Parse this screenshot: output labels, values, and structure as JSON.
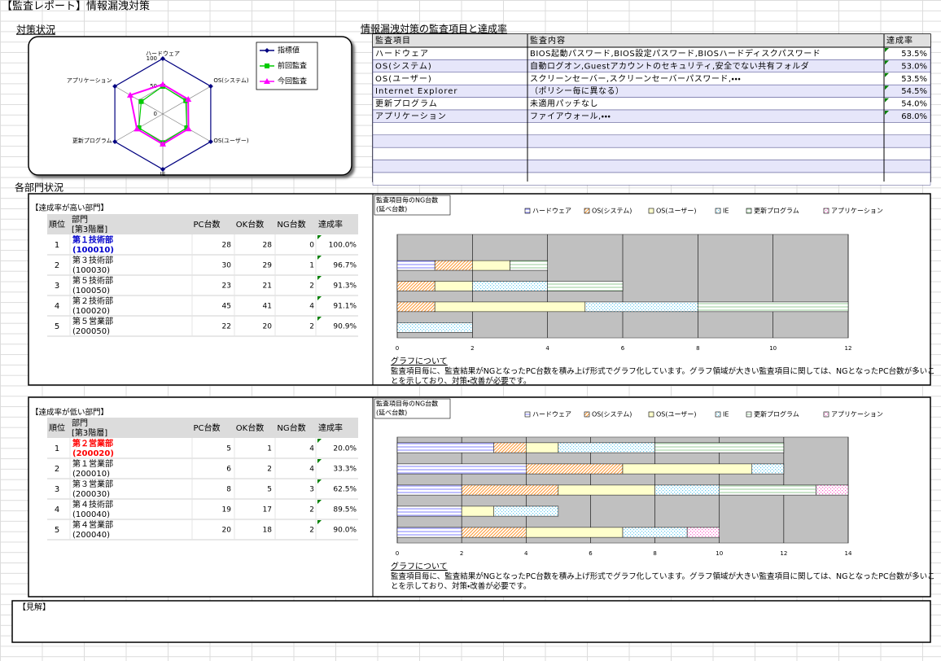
{
  "header": {
    "title": "【監査レポート】情報漏洩対策"
  },
  "sections": {
    "measures": "対策状況",
    "departments": "各部門状況"
  },
  "audit_table": {
    "title": "情報漏洩対策の監査項目と達成率",
    "columns": [
      "監査項目",
      "監査内容",
      "達成率"
    ],
    "rows": [
      [
        "ハードウェア",
        "BIOS起動パスワード,BIOS設定パスワード,BIOSハードディスクパスワード",
        "53.5%"
      ],
      [
        "OS(システム)",
        "自動ログオン,Guestアカウントのセキュリティ,安全でない共有フォルダ",
        "53.0%"
      ],
      [
        "OS(ユーザー)",
        "スクリーンセーバー,スクリーンセーバーパスワード,・・・",
        "53.5%"
      ],
      [
        "Internet Explorer",
        "（ポリシー毎に異なる）",
        "54.5%"
      ],
      [
        "更新プログラム",
        "未適用パッチなし",
        "54.0%"
      ],
      [
        "アプリケーション",
        "ファイアウォール,・・・",
        "68.0%"
      ]
    ]
  },
  "high_departments": {
    "title": "【達成率が高い部門】",
    "columns": [
      "順位",
      "部門",
      "PC台数",
      "OK台数",
      "NG台数",
      "達成率"
    ],
    "level": "[第3階層]",
    "highlight_color": "#0000cc",
    "rows": [
      [
        "1",
        "第１技術部",
        "(100010)",
        "28",
        "28",
        "0",
        "100.0%"
      ],
      [
        "2",
        "第３技術部",
        "(100030)",
        "30",
        "29",
        "1",
        "96.7%"
      ],
      [
        "3",
        "第５技術部",
        "(100050)",
        "23",
        "21",
        "2",
        "91.3%"
      ],
      [
        "4",
        "第２技術部",
        "(100020)",
        "45",
        "41",
        "4",
        "91.1%"
      ],
      [
        "5",
        "第５営業部",
        "(200050)",
        "22",
        "20",
        "2",
        "90.9%"
      ]
    ]
  },
  "low_departments": {
    "title": "【達成率が低い部門】",
    "columns": [
      "順位",
      "部門",
      "PC台数",
      "OK台数",
      "NG台数",
      "達成率"
    ],
    "level": "[第3階層]",
    "highlight_color": "#ff0000",
    "rows": [
      [
        "1",
        "第２営業部",
        "(200020)",
        "5",
        "1",
        "4",
        "20.0%"
      ],
      [
        "2",
        "第１営業部",
        "(200010)",
        "6",
        "2",
        "4",
        "33.3%"
      ],
      [
        "3",
        "第３営業部",
        "(200030)",
        "8",
        "5",
        "3",
        "62.5%"
      ],
      [
        "4",
        "第４技術部",
        "(100040)",
        "19",
        "17",
        "2",
        "89.5%"
      ],
      [
        "5",
        "第４営業部",
        "(200040)",
        "20",
        "18",
        "2",
        "90.0%"
      ]
    ]
  },
  "chart_data": [
    {
      "type": "radar",
      "categories": [
        "ハードウェア",
        "OS(システム)",
        "OS(ユーザー)",
        "IE",
        "更新プログラム",
        "アプリケーション"
      ],
      "rlim": [
        0,
        100
      ],
      "rticks": [
        0,
        50,
        100
      ],
      "legend": "top-right",
      "series": [
        {
          "name": "指標値",
          "color": "#000080",
          "marker": "diamond",
          "values": [
            100,
            100,
            100,
            100,
            100,
            100
          ]
        },
        {
          "name": "前回監査",
          "color": "#00cc00",
          "marker": "square",
          "values": [
            50,
            48,
            50,
            52,
            50,
            45
          ]
        },
        {
          "name": "今回監査",
          "color": "#ff00ff",
          "marker": "triangle",
          "values": [
            53.5,
            53,
            53.5,
            54.5,
            54,
            68
          ]
        }
      ]
    },
    {
      "type": "stacked-bar-horizontal",
      "title": "監査項目毎のNG台数",
      "subtitle": "(延べ台数)",
      "categories": [
        null,
        null,
        null,
        null,
        null
      ],
      "xlim": [
        0,
        12
      ],
      "xticks": [
        0,
        2,
        4,
        6,
        8,
        10,
        12
      ],
      "grid": true,
      "legend": "top",
      "note_title": "グラフについて",
      "note": "監査項目毎に、監査結果がNGとなったPC台数を積み上げ形式でグラフ化しています。グラフ領域が大きい監査項目に関しては、NGとなったPC台数が多いことを示しており、対策・改善が必要です。",
      "series": [
        {
          "name": "ハードウェア",
          "color": "#8080ff",
          "hatch": "horizontal",
          "values": [
            0,
            1,
            0,
            0,
            0
          ]
        },
        {
          "name": "OS(システム)",
          "color": "#ff9933",
          "hatch": "diagonal",
          "values": [
            0,
            1,
            1,
            1,
            0
          ]
        },
        {
          "name": "OS(ユーザー)",
          "color": "#ffffcc",
          "hatch": "none",
          "values": [
            0,
            1,
            1,
            4,
            0
          ]
        },
        {
          "name": "IE",
          "color": "#66ccee",
          "hatch": "dots",
          "values": [
            0,
            0,
            2,
            3,
            2
          ]
        },
        {
          "name": "更新プログラム",
          "color": "#99cc99",
          "hatch": "horizontal",
          "values": [
            0,
            1,
            2,
            4,
            0
          ]
        },
        {
          "name": "アプリケーション",
          "color": "#ff66cc",
          "hatch": "dots",
          "values": [
            0,
            0,
            0,
            0,
            0
          ]
        }
      ]
    },
    {
      "type": "stacked-bar-horizontal",
      "title": "監査項目毎のNG台数",
      "subtitle": "(延べ台数)",
      "categories": [
        null,
        null,
        null,
        null,
        null
      ],
      "xlim": [
        0,
        14
      ],
      "xticks": [
        0,
        2,
        4,
        6,
        8,
        10,
        12,
        14
      ],
      "grid": true,
      "legend": "top",
      "note_title": "グラフについて",
      "note": "監査項目毎に、監査結果がNGとなったPC台数を積み上げ形式でグラフ化しています。グラフ領域が大きい監査項目に関しては、NGとなったPC台数が多いことを示しており、対策・改善が必要です。",
      "series": [
        {
          "name": "ハードウェア",
          "color": "#8080ff",
          "hatch": "horizontal",
          "values": [
            3,
            4,
            2,
            2,
            2
          ]
        },
        {
          "name": "OS(システム)",
          "color": "#ff9933",
          "hatch": "diagonal",
          "values": [
            1,
            3,
            3,
            0,
            2
          ]
        },
        {
          "name": "OS(ユーザー)",
          "color": "#ffffcc",
          "hatch": "none",
          "values": [
            1,
            4,
            3,
            1,
            3
          ]
        },
        {
          "name": "IE",
          "color": "#66ccee",
          "hatch": "dots",
          "values": [
            3,
            1,
            2,
            2,
            2
          ]
        },
        {
          "name": "更新プログラム",
          "color": "#99cc99",
          "hatch": "horizontal",
          "values": [
            4,
            0,
            3,
            0,
            0
          ]
        },
        {
          "name": "アプリケーション",
          "color": "#ff66cc",
          "hatch": "dots",
          "values": [
            0,
            0,
            1,
            0,
            1
          ]
        }
      ]
    }
  ],
  "opinion": {
    "title": "【見解】"
  }
}
